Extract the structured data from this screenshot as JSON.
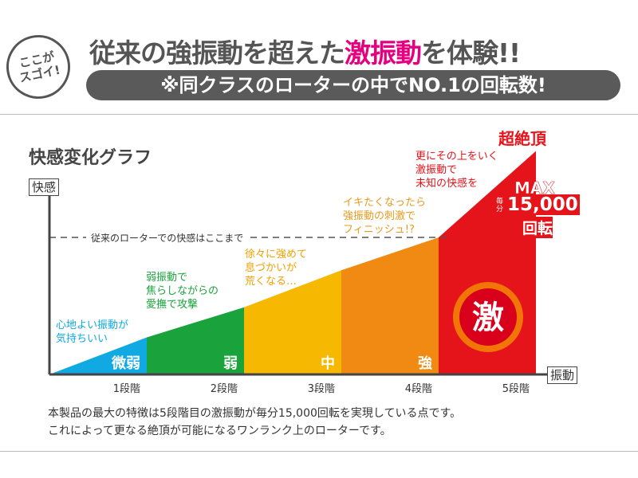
{
  "header": {
    "badge": "ここが\nスゴイ!",
    "headline_pre": "従来の強振動を超えた",
    "headline_hl": "激振動",
    "headline_post": "を体験!!",
    "subline": "※同クラスのローターの中でNO.1の回転数!"
  },
  "colors": {
    "blue": "#10a9e1",
    "green": "#1aa23c",
    "yellow": "#f6b800",
    "orange": "#f08a12",
    "red": "#e5131a",
    "headline_accent": "#e4007f"
  },
  "chart_data": {
    "type": "area",
    "title": "快感変化グラフ",
    "ylabel": "快感",
    "xlabel": "振動",
    "categories": [
      "1段階",
      "2段階",
      "3段階",
      "4段階",
      "5段階"
    ],
    "level_labels": [
      "微弱",
      "弱",
      "中",
      "強",
      "激"
    ],
    "values": [
      27,
      49,
      76,
      100,
      163
    ],
    "reference_line": {
      "value": 100,
      "label": "従来のローターでの快感はここまで"
    },
    "annotations": [
      "心地よい振動が\n気持ちいい",
      "弱振動で\n焦らしながらの\n愛撫で攻撃",
      "徐々に強めて\n息づかいが\n荒くなる…",
      "イキたくなったら\n強振動の刺激で\nフィニッシュ!?",
      "更にその上をいく\n激振動で\n未知の快感を"
    ],
    "peak_label": "超絶頂",
    "max": {
      "label": "MAX",
      "per": "毎分",
      "value": "15,000",
      "unit": "回転"
    }
  },
  "footer": {
    "line1": "本製品の最大の特徴は5段階目の激振動が毎分15,000回転を実現している点です。",
    "line2": "これによって更なる絶頂が可能になるワンランク上のローターです。"
  }
}
